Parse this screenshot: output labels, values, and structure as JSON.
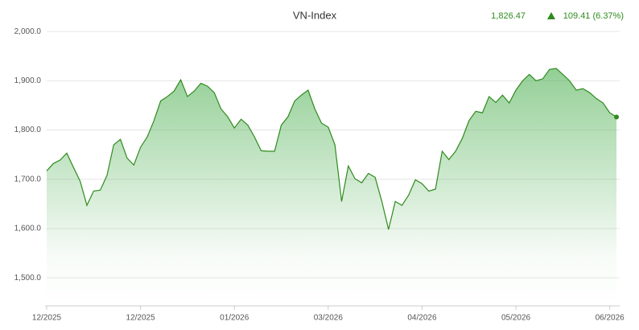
{
  "chart_data": {
    "type": "area",
    "title": "VN-Index",
    "current_label": "1,826.47",
    "change_label": "109.41 (6.37%)",
    "color": "#2e8b1e",
    "categories": [
      "12/2025",
      null,
      null,
      null,
      null,
      null,
      null,
      null,
      null,
      null,
      null,
      null,
      null,
      null,
      "12/2025",
      null,
      null,
      null,
      null,
      null,
      null,
      null,
      null,
      null,
      null,
      null,
      null,
      null,
      "01/2026",
      null,
      null,
      null,
      null,
      null,
      null,
      null,
      null,
      null,
      null,
      null,
      null,
      null,
      "03/2026",
      null,
      null,
      null,
      null,
      null,
      null,
      null,
      null,
      null,
      null,
      null,
      null,
      null,
      "04/2026",
      null,
      null,
      null,
      null,
      null,
      null,
      null,
      null,
      null,
      null,
      null,
      null,
      null,
      "05/2026",
      null,
      null,
      null,
      null,
      null,
      null,
      null,
      null,
      null,
      null,
      null,
      null,
      null,
      "06/2026",
      null
    ],
    "values": [
      1717,
      1732,
      1739,
      1753,
      1724,
      1696,
      1647,
      1676,
      1678,
      1708,
      1770,
      1781,
      1743,
      1729,
      1765,
      1786,
      1819,
      1859,
      1868,
      1879,
      1902,
      1868,
      1879,
      1895,
      1889,
      1876,
      1843,
      1827,
      1804,
      1822,
      1810,
      1786,
      1758,
      1757,
      1757,
      1810,
      1827,
      1859,
      1871,
      1881,
      1843,
      1814,
      1806,
      1770,
      1655,
      1727,
      1701,
      1693,
      1712,
      1704,
      1655,
      1598,
      1655,
      1647,
      1668,
      1699,
      1691,
      1676,
      1680,
      1757,
      1740,
      1757,
      1783,
      1819,
      1838,
      1835,
      1868,
      1856,
      1871,
      1855,
      1881,
      1900,
      1913,
      1900,
      1904,
      1923,
      1925,
      1913,
      1900,
      1881,
      1884,
      1876,
      1864,
      1855,
      1835,
      1826.47
    ],
    "ylim": [
      1443,
      2015
    ],
    "yticks": [
      {
        "value": 1500,
        "label": "1,500.0"
      },
      {
        "value": 1600,
        "label": "1,600.0"
      },
      {
        "value": 1700,
        "label": "1,700.0"
      },
      {
        "value": 1800,
        "label": "1,800.0"
      },
      {
        "value": 1900,
        "label": "1,900.0"
      },
      {
        "value": 2000,
        "label": "2,000.0"
      }
    ],
    "grid": true
  }
}
